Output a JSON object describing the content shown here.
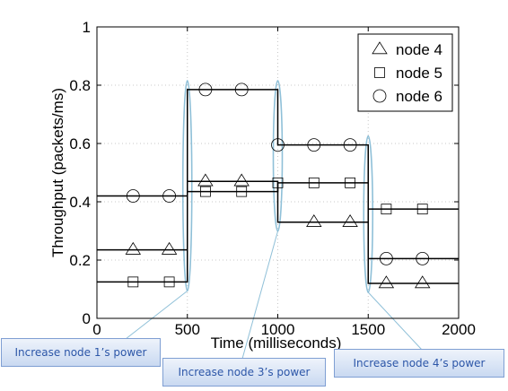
{
  "chart_data": {
    "type": "line",
    "title": "",
    "xlabel": "Time (milliseconds)",
    "ylabel": "Throughput (packets/ms)",
    "xlim": [
      0,
      2000
    ],
    "ylim": [
      0,
      1
    ],
    "xticks": [
      "0",
      "500",
      "1000",
      "1500",
      "2000"
    ],
    "yticks": [
      "0",
      "0.2",
      "0.4",
      "0.6",
      "0.8",
      "1"
    ],
    "grid": true,
    "legend_position": "top-right",
    "step": true,
    "colors": {
      "line": "#000000",
      "grid": "#c8c8c8",
      "ellipse": "#8fc0d8",
      "callout_text": "#2c56a8",
      "callout_border": "#7f9fd3"
    },
    "series": [
      {
        "name": "node 4",
        "marker": "triangle",
        "steps": [
          [
            0,
            500,
            0.235
          ],
          [
            500,
            1000,
            0.47
          ],
          [
            1000,
            1500,
            0.33
          ],
          [
            1500,
            2000,
            0.12
          ]
        ],
        "markers": [
          [
            200,
            0.235
          ],
          [
            400,
            0.235
          ],
          [
            600,
            0.47
          ],
          [
            800,
            0.47
          ],
          [
            1200,
            0.33
          ],
          [
            1400,
            0.33
          ],
          [
            1600,
            0.12
          ],
          [
            1800,
            0.12
          ]
        ]
      },
      {
        "name": "node 5",
        "marker": "square",
        "steps": [
          [
            0,
            500,
            0.125
          ],
          [
            500,
            1000,
            0.435
          ],
          [
            1000,
            1500,
            0.465
          ],
          [
            1500,
            2000,
            0.375
          ]
        ],
        "markers": [
          [
            200,
            0.125
          ],
          [
            400,
            0.125
          ],
          [
            600,
            0.435
          ],
          [
            800,
            0.435
          ],
          [
            1000,
            0.465
          ],
          [
            1200,
            0.465
          ],
          [
            1400,
            0.465
          ],
          [
            1600,
            0.375
          ],
          [
            1800,
            0.375
          ]
        ]
      },
      {
        "name": "node 6",
        "marker": "circle",
        "steps": [
          [
            0,
            500,
            0.42
          ],
          [
            500,
            1000,
            0.785
          ],
          [
            1000,
            1500,
            0.595
          ],
          [
            1500,
            2000,
            0.205
          ]
        ],
        "markers": [
          [
            200,
            0.42
          ],
          [
            400,
            0.42
          ],
          [
            600,
            0.785
          ],
          [
            800,
            0.785
          ],
          [
            1000,
            0.595
          ],
          [
            1200,
            0.595
          ],
          [
            1400,
            0.595
          ],
          [
            1600,
            0.205
          ],
          [
            1800,
            0.205
          ]
        ]
      }
    ],
    "annotations": [
      {
        "text": "Increase node 1’s power",
        "x": 500
      },
      {
        "text": "Increase node 3’s power",
        "x": 1000
      },
      {
        "text": "Increase node 4’s power",
        "x": 1500
      }
    ]
  }
}
